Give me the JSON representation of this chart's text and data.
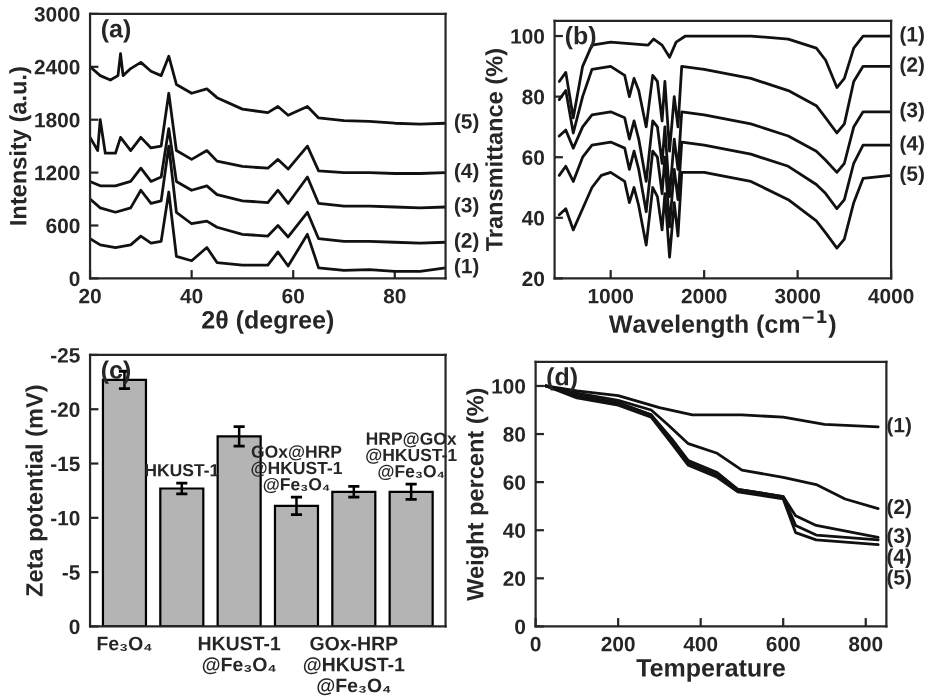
{
  "chart_data": [
    {
      "type": "line",
      "title": "(a)",
      "xlabel": "2θ (degree)",
      "ylabel": "Intensity (a.u.)",
      "xlim": [
        20,
        90
      ],
      "ylim": [
        0,
        3000
      ],
      "xticks": [
        20,
        40,
        60,
        80
      ],
      "yticks": [
        0,
        600,
        1200,
        1800,
        2400,
        3000
      ],
      "legend": false,
      "grid": false,
      "series": [
        {
          "name": "(1)",
          "color": "#111111",
          "x": [
            20,
            22,
            25,
            28,
            30,
            32,
            34,
            35.5,
            37,
            40,
            43,
            45,
            50,
            55,
            57,
            59,
            62.8,
            65,
            70,
            75,
            80,
            85,
            90
          ],
          "values": [
            450,
            380,
            350,
            380,
            480,
            400,
            420,
            980,
            250,
            200,
            350,
            180,
            150,
            150,
            300,
            140,
            500,
            120,
            90,
            100,
            80,
            80,
            120
          ]
        },
        {
          "name": "(2)",
          "color": "#111111",
          "x": [
            20,
            22,
            25,
            28,
            30,
            32,
            34,
            35.5,
            37,
            40,
            43,
            45,
            50,
            55,
            57,
            59,
            62.8,
            65,
            70,
            75,
            80,
            85,
            90
          ],
          "values": [
            900,
            800,
            750,
            800,
            1000,
            850,
            880,
            1500,
            750,
            620,
            650,
            580,
            500,
            480,
            600,
            470,
            750,
            450,
            420,
            420,
            410,
            400,
            410
          ]
        },
        {
          "name": "(3)",
          "color": "#111111",
          "x": [
            20,
            22,
            25,
            28,
            30,
            32,
            34,
            35.5,
            37,
            40,
            43,
            45,
            50,
            55,
            57,
            59,
            62.8,
            65,
            70,
            75,
            80,
            85,
            90
          ],
          "values": [
            1100,
            1050,
            1050,
            1100,
            1250,
            1100,
            1150,
            1700,
            1100,
            1000,
            1050,
            950,
            880,
            860,
            1000,
            850,
            1150,
            850,
            820,
            820,
            810,
            800,
            810
          ]
        },
        {
          "name": "(4)",
          "color": "#111111",
          "x": [
            20,
            21.5,
            22,
            23,
            25,
            26,
            28,
            30,
            32,
            34,
            35.5,
            37,
            40,
            43,
            45,
            50,
            55,
            57,
            59,
            62.8,
            65,
            70,
            75,
            80,
            85,
            90
          ],
          "values": [
            1600,
            1450,
            1800,
            1420,
            1420,
            1600,
            1450,
            1600,
            1480,
            1500,
            2100,
            1450,
            1350,
            1450,
            1330,
            1270,
            1250,
            1350,
            1240,
            1500,
            1220,
            1200,
            1200,
            1190,
            1190,
            1200
          ]
        },
        {
          "name": "(5)",
          "color": "#111111",
          "x": [
            20,
            22,
            24,
            25.5,
            26,
            26.5,
            28,
            30,
            32,
            34,
            35.5,
            37,
            40,
            43,
            45,
            50,
            55,
            57,
            59,
            62.8,
            65,
            70,
            75,
            80,
            85,
            90
          ],
          "values": [
            2400,
            2300,
            2250,
            2300,
            2550,
            2300,
            2380,
            2450,
            2350,
            2300,
            2520,
            2200,
            2100,
            2150,
            2050,
            1920,
            1880,
            1950,
            1850,
            1950,
            1820,
            1790,
            1780,
            1760,
            1750,
            1760
          ]
        }
      ]
    },
    {
      "type": "line",
      "title": "(b)",
      "xlabel": "Wavelength (cm$^{−1}$)",
      "ylabel": "Transmittance (%)",
      "xlim": [
        400,
        4000
      ],
      "ylim": [
        20,
        105
      ],
      "xticks": [
        1000,
        2000,
        3000,
        4000
      ],
      "yticks": [
        20,
        40,
        60,
        80,
        100
      ],
      "legend": false,
      "grid": false,
      "series": [
        {
          "name": "(1)",
          "color": "#111111",
          "x": [
            450,
            520,
            600,
            700,
            800,
            1000,
            1400,
            1460,
            1550,
            1630,
            1700,
            1800,
            2500,
            2900,
            3200,
            3300,
            3420,
            3500,
            3600,
            3700,
            4000
          ],
          "values": [
            85,
            88,
            73,
            90,
            97,
            98,
            97,
            99,
            97,
            93,
            98,
            100,
            100,
            99,
            96,
            92,
            83,
            86,
            96,
            100,
            100
          ]
        },
        {
          "name": "(2)",
          "color": "#111111",
          "x": [
            450,
            520,
            600,
            700,
            800,
            1000,
            1150,
            1200,
            1250,
            1300,
            1380,
            1450,
            1500,
            1550,
            1580,
            1630,
            1680,
            1720,
            1760,
            2000,
            2500,
            2900,
            3200,
            3300,
            3420,
            3500,
            3600,
            3700,
            4000
          ],
          "values": [
            79,
            82,
            68,
            80,
            89,
            90,
            87,
            80,
            86,
            82,
            70,
            87,
            85,
            72,
            85,
            62,
            80,
            70,
            90,
            89,
            86,
            82,
            77,
            73,
            68,
            71,
            85,
            90,
            90
          ]
        },
        {
          "name": "(3)",
          "color": "#111111",
          "x": [
            450,
            520,
            600,
            700,
            800,
            1000,
            1150,
            1200,
            1250,
            1300,
            1380,
            1450,
            1500,
            1550,
            1580,
            1630,
            1680,
            1720,
            1760,
            2000,
            2500,
            2900,
            3200,
            3300,
            3420,
            3500,
            3600,
            3700,
            4000
          ],
          "values": [
            67,
            69,
            63,
            70,
            74,
            75,
            73,
            66,
            72,
            66,
            52,
            72,
            70,
            58,
            70,
            47,
            66,
            56,
            75,
            74,
            71,
            67,
            62,
            59,
            55,
            58,
            70,
            75,
            75
          ]
        },
        {
          "name": "(4)",
          "color": "#111111",
          "x": [
            450,
            520,
            600,
            700,
            800,
            1000,
            1150,
            1200,
            1250,
            1300,
            1380,
            1450,
            1500,
            1550,
            1580,
            1630,
            1680,
            1720,
            1760,
            2000,
            2500,
            2900,
            3200,
            3300,
            3420,
            3500,
            3600,
            3700,
            4000
          ],
          "values": [
            54,
            57,
            52,
            60,
            64,
            65,
            63,
            56,
            62,
            56,
            42,
            62,
            60,
            48,
            60,
            37,
            56,
            46,
            65,
            64,
            61,
            57,
            51,
            48,
            43,
            46,
            58,
            64,
            64
          ]
        },
        {
          "name": "(5)",
          "color": "#111111",
          "x": [
            450,
            520,
            600,
            700,
            800,
            900,
            1000,
            1150,
            1200,
            1250,
            1300,
            1380,
            1450,
            1500,
            1550,
            1580,
            1630,
            1680,
            1720,
            1760,
            2000,
            2500,
            2900,
            3200,
            3300,
            3420,
            3500,
            3600,
            3700,
            4000
          ],
          "values": [
            41,
            43,
            36,
            43,
            50,
            54,
            55,
            52,
            45,
            50,
            44,
            31,
            50,
            47,
            36,
            48,
            27,
            45,
            34,
            55,
            55,
            52,
            46,
            39,
            35,
            30,
            33,
            45,
            53,
            54
          ]
        }
      ]
    },
    {
      "type": "bar",
      "title": "(c)",
      "ylabel": "Zeta potential (mV)",
      "ylim": [
        0,
        -25
      ],
      "yticks": [
        0,
        -5,
        -10,
        -15,
        -20,
        -25
      ],
      "grid": false,
      "categories": [
        "Fe₃O₄",
        "HKUST-1",
        "HKUST-1\n@Fe₃O₄",
        "GOx@HRP\n@HKUST-1\n@Fe₃O₄",
        "GOx-HRP\n@HKUST-1\n@Fe₃O₄",
        "HRP@GOx\n@HKUST-1\n@Fe₃O₄"
      ],
      "values": [
        -22.7,
        -12.7,
        -17.5,
        -11.1,
        -12.4,
        -12.4
      ],
      "errors": [
        0.8,
        0.5,
        0.9,
        0.8,
        0.5,
        0.7
      ],
      "color": "#b4b4b4"
    },
    {
      "type": "line",
      "title": "(d)",
      "xlabel": "Temperature",
      "ylabel": "Weight percent (%)",
      "xlim": [
        0,
        850
      ],
      "ylim": [
        0,
        110
      ],
      "xticks": [
        0,
        200,
        400,
        600,
        800
      ],
      "yticks": [
        0,
        20,
        40,
        60,
        80,
        100
      ],
      "legend": false,
      "grid": false,
      "series": [
        {
          "name": "(1)",
          "color": "#111111",
          "x": [
            25,
            100,
            200,
            300,
            380,
            500,
            600,
            700,
            830
          ],
          "values": [
            100,
            98,
            96,
            91,
            88,
            88,
            87,
            84,
            83
          ]
        },
        {
          "name": "(2)",
          "color": "#111111",
          "x": [
            25,
            100,
            200,
            280,
            320,
            370,
            440,
            500,
            600,
            680,
            750,
            830
          ],
          "values": [
            100,
            97,
            94,
            90,
            84,
            76,
            72,
            65,
            62,
            59,
            53,
            49
          ]
        },
        {
          "name": "(3)",
          "color": "#111111",
          "x": [
            25,
            100,
            200,
            280,
            330,
            370,
            440,
            490,
            600,
            630,
            680,
            830
          ],
          "values": [
            100,
            96,
            93,
            88,
            78,
            69,
            64,
            57,
            54,
            46,
            42,
            37
          ]
        },
        {
          "name": "(4)",
          "color": "#111111",
          "x": [
            25,
            100,
            200,
            280,
            330,
            370,
            440,
            490,
            600,
            630,
            680,
            830
          ],
          "values": [
            100,
            96,
            93,
            88,
            77,
            68,
            63,
            57,
            54,
            42,
            38,
            36
          ]
        },
        {
          "name": "(5)",
          "color": "#111111",
          "x": [
            25,
            100,
            200,
            280,
            330,
            370,
            440,
            490,
            600,
            630,
            680,
            830
          ],
          "values": [
            100,
            95,
            92,
            87,
            76,
            67,
            62,
            56,
            53,
            39,
            36,
            34
          ]
        }
      ]
    }
  ]
}
